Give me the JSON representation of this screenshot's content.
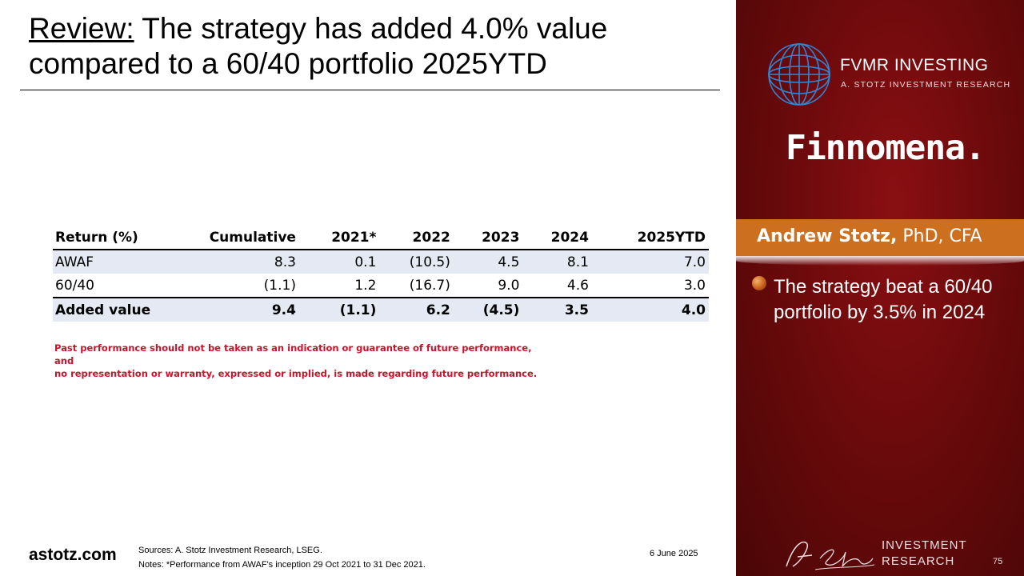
{
  "title": {
    "lead": "Review:",
    "text": " The strategy has added 4.0% value compared to a 60/40 portfolio 2025YTD"
  },
  "table": {
    "headers": [
      "Return (%)",
      "Cumulative",
      "2021*",
      "2022",
      "2023",
      "2024",
      "2025YTD"
    ],
    "rows": [
      [
        "AWAF",
        "8.3",
        "0.1",
        "(10.5)",
        "4.5",
        "8.1",
        "7.0"
      ],
      [
        "60/40",
        "(1.1)",
        "1.2",
        "(16.7)",
        "9.0",
        "4.6",
        "3.0"
      ],
      [
        "Added value",
        "9.4",
        "(1.1)",
        "6.2",
        "(4.5)",
        "3.5",
        "4.0"
      ]
    ]
  },
  "disclaimer": {
    "line1": "Past performance should not be taken as an indication or guarantee of future performance, and",
    "line2": "no representation or warranty, expressed or implied, is made regarding future performance."
  },
  "footer": {
    "site": "astotz.com",
    "sources": "Sources: A. Stotz Investment Research, LSEG.",
    "notes": "Notes: *Performance from AWAF's inception 29 Oct 2021 to 31 Dec 2021.",
    "date": "6 June 2025"
  },
  "panel": {
    "brand_name": "FVMR INVESTING",
    "brand_sub": "A. STOTZ INVESTMENT RESEARCH",
    "partner": "Finnomena.",
    "presenter_name": "Andrew Stotz,",
    "presenter_creds": " PhD, CFA",
    "bullet": "The strategy beat a 60/40 portfolio by 3.5% in 2024",
    "logo_signature": "A. Stotz",
    "ir_line1": "INVESTMENT",
    "ir_line2": "RESEARCH",
    "page": "75"
  },
  "colors": {
    "panel_red": "#6c0a0c",
    "band_orange": "#cc6f1f",
    "disclaimer_red": "#d0102a",
    "table_shade": "#e4e9f3"
  }
}
